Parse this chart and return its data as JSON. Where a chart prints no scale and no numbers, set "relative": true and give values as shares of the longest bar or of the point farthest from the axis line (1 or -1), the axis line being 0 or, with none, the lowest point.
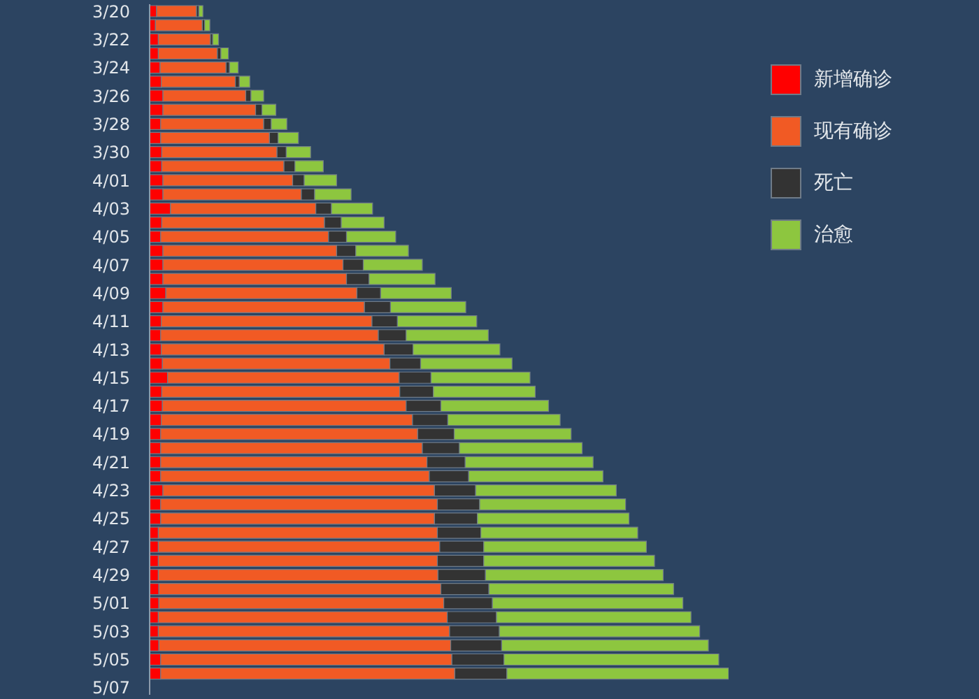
{
  "chart_data": {
    "type": "bar",
    "orientation": "horizontal",
    "stacked": true,
    "relative": true,
    "legend": "top right",
    "categories": [
      "3/20",
      null,
      "3/22",
      null,
      "3/24",
      null,
      "3/26",
      null,
      "3/28",
      null,
      "3/30",
      null,
      "4/01",
      null,
      "4/03",
      null,
      "4/05",
      null,
      "4/07",
      null,
      "4/09",
      null,
      "4/11",
      null,
      "4/13",
      null,
      "4/15",
      null,
      "4/17",
      null,
      "4/19",
      null,
      "4/21",
      null,
      "4/23",
      null,
      "4/25",
      null,
      "4/27",
      null,
      "4/29",
      null,
      "5/01",
      null,
      "5/03",
      null,
      "5/05",
      null,
      "5/07"
    ],
    "series": [
      {
        "name": "新增确诊",
        "color": "#ff0000",
        "values": [
          0.012,
          0.01,
          0.015,
          0.015,
          0.018,
          0.02,
          0.023,
          0.023,
          0.019,
          0.019,
          0.021,
          0.021,
          0.023,
          0.023,
          0.036,
          0.021,
          0.019,
          0.023,
          0.023,
          0.023,
          0.028,
          0.023,
          0.02,
          0.019,
          0.02,
          0.022,
          0.031,
          0.021,
          0.022,
          0.02,
          0.019,
          0.019,
          0.019,
          0.019,
          0.023,
          0.019,
          0.019,
          0.015,
          0.015,
          0.015,
          0.015,
          0.016,
          0.016,
          0.015,
          0.015,
          0.016,
          0.019,
          0.019,
          null
        ]
      },
      {
        "name": "现有确诊",
        "color": "#f15a24",
        "values": [
          0.069,
          0.081,
          0.09,
          0.102,
          0.114,
          0.128,
          0.143,
          0.16,
          0.178,
          0.188,
          0.199,
          0.211,
          0.224,
          0.239,
          0.251,
          0.281,
          0.29,
          0.3,
          0.311,
          0.317,
          0.33,
          0.348,
          0.364,
          0.376,
          0.385,
          0.393,
          0.4,
          0.411,
          0.421,
          0.434,
          0.444,
          0.452,
          0.46,
          0.464,
          0.469,
          0.478,
          0.473,
          0.482,
          0.486,
          0.482,
          0.483,
          0.487,
          0.492,
          0.499,
          0.503,
          0.504,
          0.503,
          0.508,
          null
        ]
      },
      {
        "name": "死亡",
        "color": "#333333",
        "values": [
          0.004,
          0.004,
          0.004,
          0.006,
          0.006,
          0.007,
          0.009,
          0.011,
          0.013,
          0.015,
          0.016,
          0.019,
          0.02,
          0.023,
          0.027,
          0.029,
          0.031,
          0.033,
          0.035,
          0.039,
          0.041,
          0.045,
          0.044,
          0.048,
          0.05,
          0.053,
          0.055,
          0.058,
          0.06,
          0.061,
          0.063,
          0.064,
          0.066,
          0.068,
          0.071,
          0.073,
          0.074,
          0.075,
          0.076,
          0.08,
          0.082,
          0.083,
          0.084,
          0.085,
          0.086,
          0.088,
          0.09,
          0.09,
          null
        ]
      },
      {
        "name": "治愈",
        "color": "#8dc63f",
        "values": [
          0.007,
          0.009,
          0.01,
          0.013,
          0.015,
          0.018,
          0.022,
          0.024,
          0.027,
          0.035,
          0.042,
          0.049,
          0.056,
          0.063,
          0.071,
          0.074,
          0.085,
          0.091,
          0.102,
          0.114,
          0.122,
          0.13,
          0.137,
          0.142,
          0.15,
          0.158,
          0.171,
          0.176,
          0.186,
          0.194,
          0.202,
          0.212,
          0.221,
          0.232,
          0.243,
          0.252,
          0.262,
          0.271,
          0.281,
          0.295,
          0.307,
          0.319,
          0.329,
          0.336,
          0.346,
          0.357,
          0.371,
          0.383,
          null
        ]
      }
    ]
  }
}
